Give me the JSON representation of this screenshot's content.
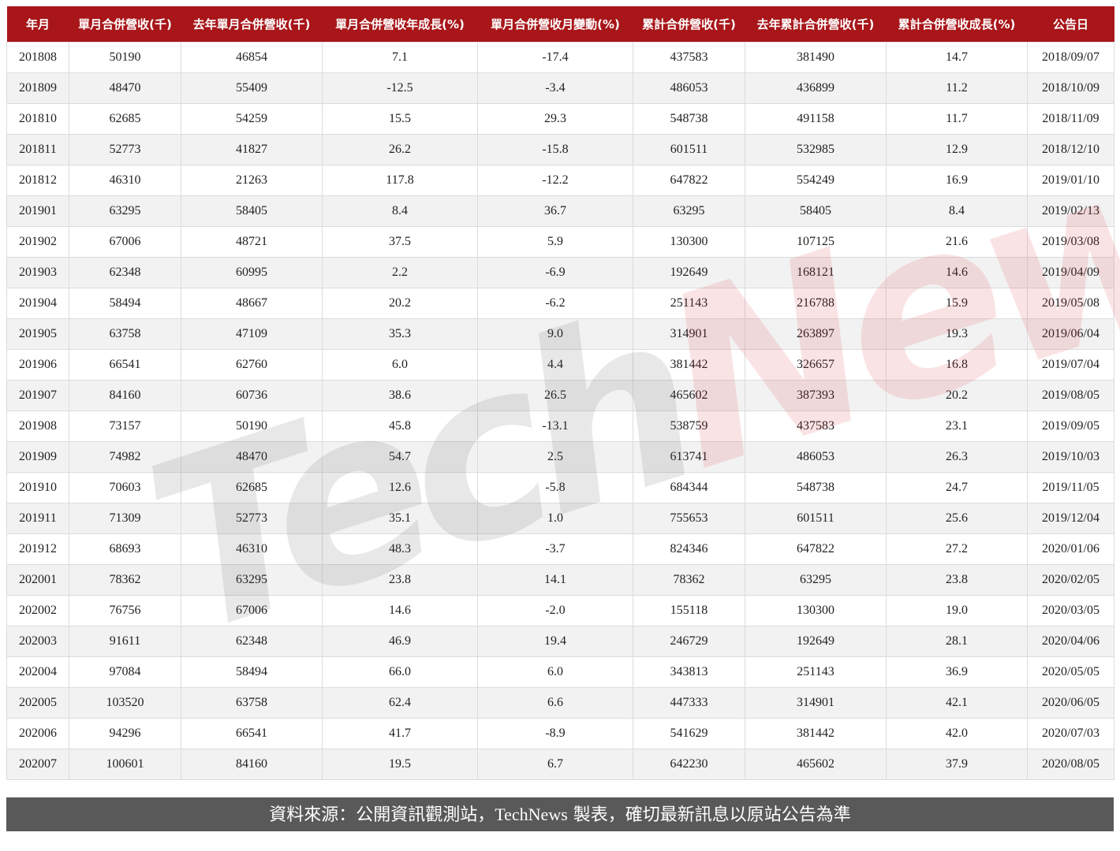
{
  "table": {
    "columns": [
      "年月",
      "單月合併營收(千)",
      "去年單月合併營收(千)",
      "單月合併營收年成長(%)",
      "單月合併營收月變動(%)",
      "累計合併營收(千)",
      "去年累計合併營收(千)",
      "累計合併營收成長(%)",
      "公告日"
    ],
    "header_color": "#a8161a",
    "rows": [
      [
        "201808",
        "50190",
        "46854",
        "7.1",
        "-17.4",
        "437583",
        "381490",
        "14.7",
        "2018/09/07"
      ],
      [
        "201809",
        "48470",
        "55409",
        "-12.5",
        "-3.4",
        "486053",
        "436899",
        "11.2",
        "2018/10/09"
      ],
      [
        "201810",
        "62685",
        "54259",
        "15.5",
        "29.3",
        "548738",
        "491158",
        "11.7",
        "2018/11/09"
      ],
      [
        "201811",
        "52773",
        "41827",
        "26.2",
        "-15.8",
        "601511",
        "532985",
        "12.9",
        "2018/12/10"
      ],
      [
        "201812",
        "46310",
        "21263",
        "117.8",
        "-12.2",
        "647822",
        "554249",
        "16.9",
        "2019/01/10"
      ],
      [
        "201901",
        "63295",
        "58405",
        "8.4",
        "36.7",
        "63295",
        "58405",
        "8.4",
        "2019/02/13"
      ],
      [
        "201902",
        "67006",
        "48721",
        "37.5",
        "5.9",
        "130300",
        "107125",
        "21.6",
        "2019/03/08"
      ],
      [
        "201903",
        "62348",
        "60995",
        "2.2",
        "-6.9",
        "192649",
        "168121",
        "14.6",
        "2019/04/09"
      ],
      [
        "201904",
        "58494",
        "48667",
        "20.2",
        "-6.2",
        "251143",
        "216788",
        "15.9",
        "2019/05/08"
      ],
      [
        "201905",
        "63758",
        "47109",
        "35.3",
        "9.0",
        "314901",
        "263897",
        "19.3",
        "2019/06/04"
      ],
      [
        "201906",
        "66541",
        "62760",
        "6.0",
        "4.4",
        "381442",
        "326657",
        "16.8",
        "2019/07/04"
      ],
      [
        "201907",
        "84160",
        "60736",
        "38.6",
        "26.5",
        "465602",
        "387393",
        "20.2",
        "2019/08/05"
      ],
      [
        "201908",
        "73157",
        "50190",
        "45.8",
        "-13.1",
        "538759",
        "437583",
        "23.1",
        "2019/09/05"
      ],
      [
        "201909",
        "74982",
        "48470",
        "54.7",
        "2.5",
        "613741",
        "486053",
        "26.3",
        "2019/10/03"
      ],
      [
        "201910",
        "70603",
        "62685",
        "12.6",
        "-5.8",
        "684344",
        "548738",
        "24.7",
        "2019/11/05"
      ],
      [
        "201911",
        "71309",
        "52773",
        "35.1",
        "1.0",
        "755653",
        "601511",
        "25.6",
        "2019/12/04"
      ],
      [
        "201912",
        "68693",
        "46310",
        "48.3",
        "-3.7",
        "824346",
        "647822",
        "27.2",
        "2020/01/06"
      ],
      [
        "202001",
        "78362",
        "63295",
        "23.8",
        "14.1",
        "78362",
        "63295",
        "23.8",
        "2020/02/05"
      ],
      [
        "202002",
        "76756",
        "67006",
        "14.6",
        "-2.0",
        "155118",
        "130300",
        "19.0",
        "2020/03/05"
      ],
      [
        "202003",
        "91611",
        "62348",
        "46.9",
        "19.4",
        "246729",
        "192649",
        "28.1",
        "2020/04/06"
      ],
      [
        "202004",
        "97084",
        "58494",
        "66.0",
        "6.0",
        "343813",
        "251143",
        "36.9",
        "2020/05/05"
      ],
      [
        "202005",
        "103520",
        "63758",
        "62.4",
        "6.6",
        "447333",
        "314901",
        "42.1",
        "2020/06/05"
      ],
      [
        "202006",
        "94296",
        "66541",
        "41.7",
        "-8.9",
        "541629",
        "381442",
        "42.0",
        "2020/07/03"
      ],
      [
        "202007",
        "100601",
        "84160",
        "19.5",
        "6.7",
        "642230",
        "465602",
        "37.9",
        "2020/08/05"
      ]
    ]
  },
  "watermark": {
    "part1": "Tech",
    "part2": "News"
  },
  "footer": {
    "prefix": "資料來源：公開資訊觀測站，",
    "brand": "TechNews",
    "suffix": " 製表，確切最新訊息以原站公告為準"
  }
}
